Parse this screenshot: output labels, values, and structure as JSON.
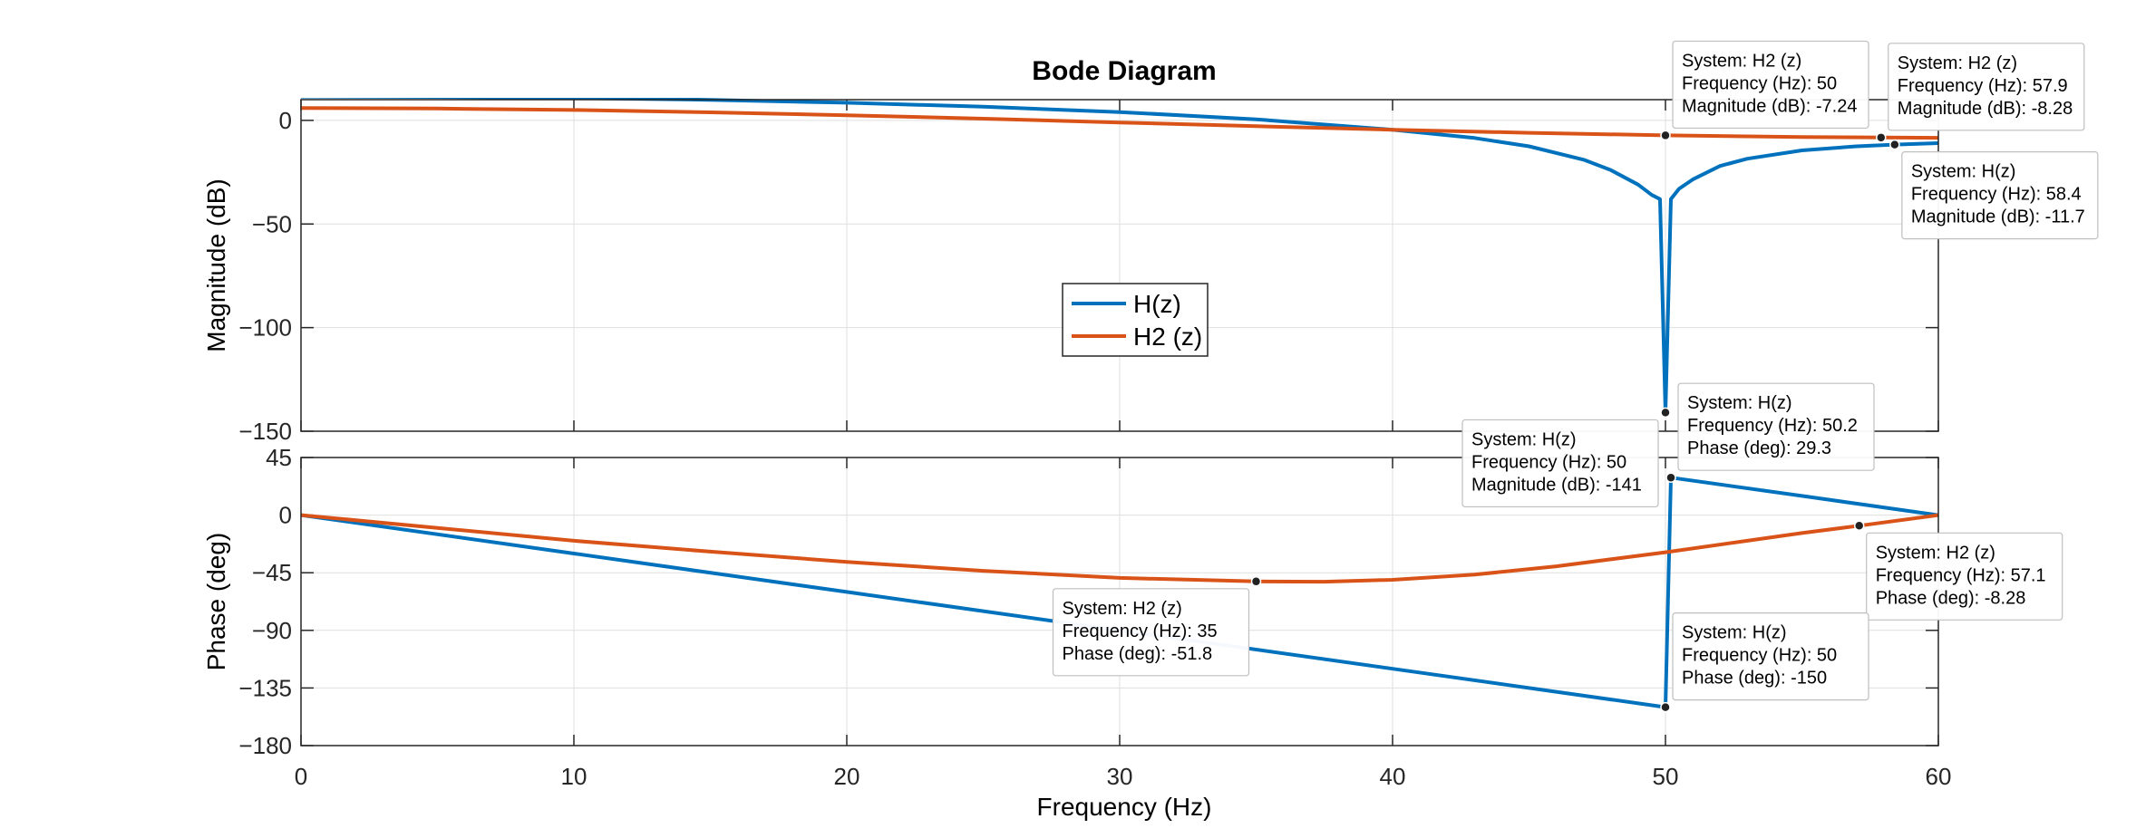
{
  "colors": {
    "series1": "#0072BD",
    "series2": "#D95319",
    "grid": "#DFDFDF",
    "axis": "#262626"
  },
  "chart_data": {
    "type": "line",
    "title": "Bode Diagram",
    "xlabel": "Frequency  (Hz)",
    "xlim": [
      0,
      60
    ],
    "xticks": [
      0,
      10,
      20,
      30,
      40,
      50,
      60
    ],
    "grid": true,
    "legend_position": "center-left",
    "panels": [
      {
        "ylabel": "Magnitude (dB)",
        "ylim": [
          -150,
          10
        ],
        "yticks": [
          0,
          -50,
          -100,
          -150
        ],
        "series": [
          {
            "name": "H(z)",
            "color": "#0072BD",
            "x": [
              0,
              5,
              10,
              15,
              20,
              25,
              30,
              35,
              40,
              43,
              45,
              47,
              48,
              49,
              49.5,
              49.8,
              50,
              50.2,
              50.5,
              51,
              52,
              53,
              55,
              57,
              58.4,
              60
            ],
            "y": [
              11.5,
              11.3,
              10.8,
              9.9,
              8.5,
              6.6,
              4,
              0.5,
              -4.5,
              -8.5,
              -12.5,
              -19,
              -24,
              -31,
              -36,
              -38,
              -141,
              -38,
              -33,
              -28.5,
              -22,
              -18.5,
              -14.5,
              -12.5,
              -11.7,
              -11
            ]
          },
          {
            "name": "H2 (z)",
            "color": "#D95319",
            "x": [
              0,
              5,
              10,
              15,
              20,
              25,
              30,
              35,
              40,
              45,
              50,
              55,
              57.9,
              60
            ],
            "y": [
              6,
              5.7,
              5,
              3.9,
              2.5,
              0.8,
              -1,
              -2.8,
              -4.5,
              -6,
              -7.24,
              -8,
              -8.28,
              -8.4
            ]
          }
        ]
      },
      {
        "ylabel": "Phase (deg)",
        "ylim": [
          -180,
          45
        ],
        "yticks": [
          45,
          0,
          -45,
          -90,
          -135,
          -180
        ],
        "series": [
          {
            "name": "H(z)",
            "color": "#0072BD",
            "x": [
              0,
              10,
              20,
              30,
              40,
              50,
              50,
              50.2,
              55,
              60
            ],
            "y": [
              0,
              -30,
              -60,
              -90,
              -120,
              -150,
              -150,
              29.3,
              15,
              0
            ]
          },
          {
            "name": "H2 (z)",
            "color": "#D95319",
            "x": [
              0,
              5,
              10,
              15,
              20,
              25,
              30,
              35,
              37.5,
              40,
              43,
              46,
              50,
              53,
              55,
              57.1,
              60
            ],
            "y": [
              0,
              -10,
              -20,
              -28.5,
              -36.5,
              -43.5,
              -49,
              -51.8,
              -52,
              -50.5,
              -46.5,
              -40,
              -29,
              -20,
              -14,
              -8.28,
              0
            ]
          }
        ]
      }
    ],
    "legend": [
      "H(z)",
      "H2 (z)"
    ],
    "annotations": [
      {
        "panel": 0,
        "x": 50,
        "y": -7.24,
        "series": 1,
        "box": "tl",
        "lines": [
          "System: H2 (z)",
          "Frequency (Hz): 50",
          "Magnitude (dB): -7.24"
        ]
      },
      {
        "panel": 0,
        "x": 57.9,
        "y": -8.28,
        "series": 1,
        "box": "tr",
        "lines": [
          "System: H2 (z)",
          "Frequency (Hz): 57.9",
          "Magnitude (dB): -8.28"
        ]
      },
      {
        "panel": 0,
        "x": 58.4,
        "y": -11.7,
        "series": 0,
        "box": "br",
        "lines": [
          "System: H(z)",
          "Frequency (Hz): 58.4",
          "Magnitude (dB): -11.7"
        ]
      },
      {
        "panel": 0,
        "x": 50,
        "y": -141,
        "series": 0,
        "box": "bl",
        "lines": [
          "System: H(z)",
          "Frequency (Hz): 50",
          "Magnitude (dB): -141"
        ]
      },
      {
        "panel": 1,
        "x": 50.2,
        "y": 29.3,
        "series": 0,
        "box": "tr",
        "lines": [
          "System: H(z)",
          "Frequency (Hz): 50.2",
          "Phase (deg): 29.3"
        ]
      },
      {
        "panel": 1,
        "x": 57.1,
        "y": -8.28,
        "series": 1,
        "box": "br",
        "lines": [
          "System: H2 (z)",
          "Frequency (Hz): 57.1",
          "Phase (deg): -8.28"
        ]
      },
      {
        "panel": 1,
        "x": 35,
        "y": -51.8,
        "series": 1,
        "box": "bl",
        "lines": [
          "System: H2 (z)",
          "Frequency (Hz): 35",
          "Phase (deg): -51.8"
        ]
      },
      {
        "panel": 1,
        "x": 50,
        "y": -150,
        "series": 0,
        "box": "tr",
        "lines": [
          "System: H(z)",
          "Frequency (Hz): 50",
          "Phase (deg): -150"
        ]
      }
    ]
  }
}
